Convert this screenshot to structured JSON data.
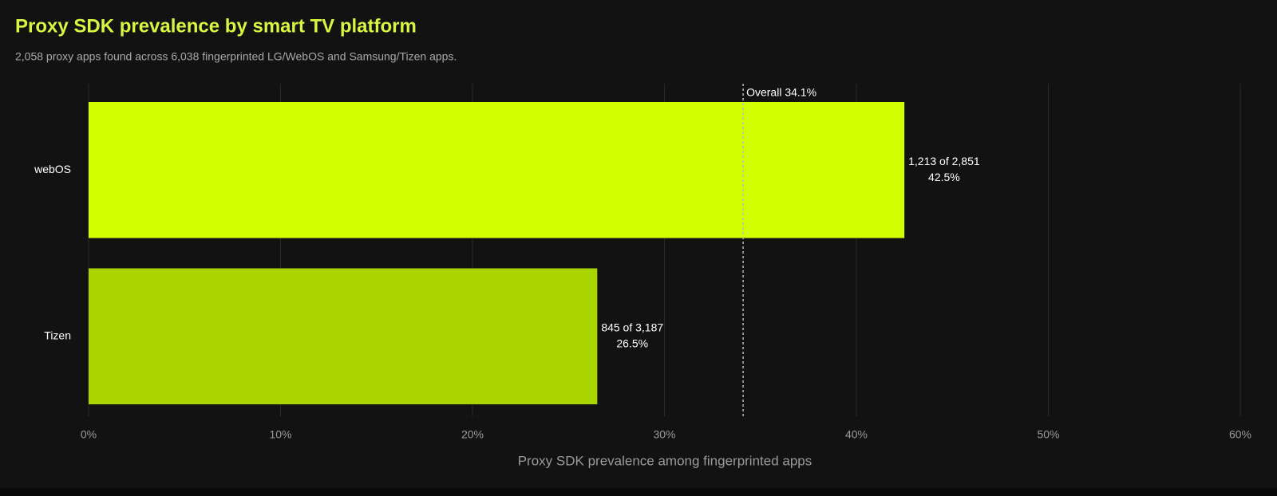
{
  "chart_data": {
    "type": "hbar",
    "title": "Proxy SDK prevalence by smart TV platform",
    "subtitle": "2,058 proxy apps found across 6,038 fingerprinted LG/WebOS and Samsung/Tizen apps.",
    "x_label": "Proxy SDK prevalence among fingerprinted apps",
    "categories": [
      "webOS",
      "Tizen"
    ],
    "values": [
      42.5,
      26.5
    ],
    "value_labels": [
      "42.5%",
      "26.5%"
    ],
    "count_labels": [
      "1,213 of 2,851",
      "845 of 3,187"
    ],
    "colors": [
      "#d4ff00",
      "#aad400"
    ],
    "reference_line": {
      "value": 34.1,
      "label": "Overall 34.1%"
    },
    "xlim": [
      0,
      60
    ],
    "xticks": [
      {
        "value": 0,
        "label": "0%"
      },
      {
        "value": 10,
        "label": "10%"
      },
      {
        "value": 20,
        "label": "20%"
      },
      {
        "value": 30,
        "label": "30%"
      },
      {
        "value": 40,
        "label": "40%"
      },
      {
        "value": 50,
        "label": "50%"
      },
      {
        "value": 60,
        "label": "60%"
      }
    ],
    "grid": true
  }
}
